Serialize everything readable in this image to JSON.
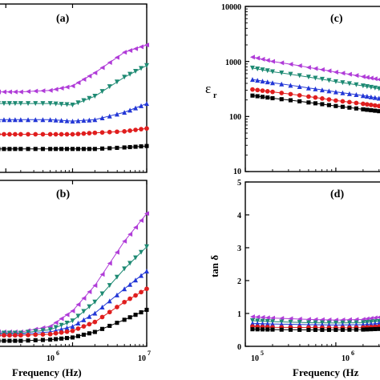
{
  "figure": {
    "panels": {
      "a": {
        "label": "(a)"
      },
      "b": {
        "label": "(b)"
      },
      "c": {
        "label": "(c)"
      },
      "d": {
        "label": "(d)"
      }
    },
    "x_title_left": "Frequency (Hz)",
    "x_title_right": "Frequency (Hz",
    "y_title_c": "ε",
    "y_title_c_sub": "r",
    "y_title_d": "tan δ",
    "x_tick_b": [
      "10",
      "10"
    ],
    "x_tick_b_exp": [
      "6",
      "7"
    ],
    "x_tick_d": [
      "10",
      "10"
    ],
    "x_tick_d_exp": [
      "5",
      "6"
    ],
    "y_ticks_c": [
      "10000",
      "1000",
      "100",
      "10"
    ],
    "y_ticks_d": [
      "5",
      "4",
      "3",
      "2",
      "1",
      "0"
    ]
  },
  "chart_data": [
    {
      "panel": "a",
      "type": "line",
      "xscale": "log",
      "xlim": [
        100000,
        10000000
      ],
      "title": "",
      "xlabel": "",
      "ylabel": "",
      "x": [
        100000,
        200000,
        500000,
        1000000,
        2000000,
        5000000,
        10000000
      ],
      "series": [
        {
          "marker": "triangle-left",
          "color": "#b03cd8",
          "values": [
            0.3,
            0.3,
            0.31,
            0.34,
            0.43,
            0.57,
            0.62
          ]
        },
        {
          "marker": "triangle-down",
          "color": "#1e8a73",
          "values": [
            0.22,
            0.22,
            0.22,
            0.21,
            0.27,
            0.4,
            0.48
          ]
        },
        {
          "marker": "triangle-up",
          "color": "#2337d6",
          "values": [
            0.11,
            0.11,
            0.11,
            0.1,
            0.11,
            0.16,
            0.22
          ]
        },
        {
          "marker": "circle",
          "color": "#e01e1e",
          "values": [
            0.01,
            0.01,
            0.01,
            0.01,
            0.02,
            0.03,
            0.05
          ]
        },
        {
          "marker": "square",
          "color": "#000000",
          "values": [
            -0.09,
            -0.09,
            -0.09,
            -0.09,
            -0.09,
            -0.08,
            -0.07
          ]
        }
      ]
    },
    {
      "panel": "b",
      "type": "line",
      "xscale": "log",
      "xlim": [
        100000,
        10000000
      ],
      "title": "",
      "xlabel": "Frequency (Hz)",
      "ylabel": "",
      "x": [
        100000,
        200000,
        500000,
        1000000,
        2000000,
        5000000,
        10000000
      ],
      "series": [
        {
          "marker": "triangle-left",
          "color": "#b03cd8",
          "values": [
            0.13,
            0.13,
            0.18,
            0.32,
            0.55,
            0.95,
            1.2
          ]
        },
        {
          "marker": "triangle-down",
          "color": "#1e8a73",
          "values": [
            0.12,
            0.12,
            0.15,
            0.23,
            0.4,
            0.7,
            0.9
          ]
        },
        {
          "marker": "triangle-up",
          "color": "#2337d6",
          "values": [
            0.11,
            0.11,
            0.13,
            0.18,
            0.3,
            0.52,
            0.68
          ]
        },
        {
          "marker": "circle",
          "color": "#e01e1e",
          "values": [
            0.1,
            0.1,
            0.11,
            0.14,
            0.22,
            0.4,
            0.52
          ]
        },
        {
          "marker": "square",
          "color": "#000000",
          "values": [
            0.05,
            0.05,
            0.06,
            0.08,
            0.13,
            0.24,
            0.33
          ]
        }
      ]
    },
    {
      "panel": "c",
      "type": "line",
      "xscale": "log",
      "yscale": "log",
      "xlim": [
        100000,
        10000000
      ],
      "ylim": [
        10,
        10000
      ],
      "title": "",
      "xlabel": "",
      "ylabel": "εr",
      "x": [
        120000,
        200000,
        500000,
        1000000,
        2000000,
        3000000
      ],
      "series": [
        {
          "marker": "triangle-left",
          "color": "#b03cd8",
          "values": [
            1200,
            1000,
            780,
            640,
            530,
            470
          ]
        },
        {
          "marker": "triangle-down",
          "color": "#1e8a73",
          "values": [
            760,
            650,
            520,
            430,
            360,
            320
          ]
        },
        {
          "marker": "triangle-up",
          "color": "#2337d6",
          "values": [
            470,
            410,
            330,
            280,
            240,
            215
          ]
        },
        {
          "marker": "circle",
          "color": "#e01e1e",
          "values": [
            310,
            280,
            230,
            195,
            170,
            155
          ]
        },
        {
          "marker": "square",
          "color": "#000000",
          "values": [
            240,
            215,
            180,
            155,
            135,
            125
          ]
        }
      ]
    },
    {
      "panel": "d",
      "type": "line",
      "xscale": "log",
      "xlim": [
        100000,
        10000000
      ],
      "ylim": [
        0,
        5
      ],
      "title": "",
      "xlabel": "Frequency (Hz",
      "ylabel": "tan δ",
      "x": [
        120000,
        200000,
        500000,
        1000000,
        2000000,
        3000000
      ],
      "series": [
        {
          "marker": "triangle-left",
          "color": "#b03cd8",
          "values": [
            0.9,
            0.86,
            0.82,
            0.8,
            0.82,
            0.88
          ]
        },
        {
          "marker": "triangle-down",
          "color": "#1e8a73",
          "values": [
            0.78,
            0.75,
            0.72,
            0.71,
            0.72,
            0.76
          ]
        },
        {
          "marker": "triangle-up",
          "color": "#2337d6",
          "values": [
            0.7,
            0.68,
            0.66,
            0.65,
            0.66,
            0.7
          ]
        },
        {
          "marker": "circle",
          "color": "#e01e1e",
          "values": [
            0.6,
            0.58,
            0.57,
            0.56,
            0.57,
            0.6
          ]
        },
        {
          "marker": "square",
          "color": "#000000",
          "values": [
            0.52,
            0.51,
            0.5,
            0.5,
            0.51,
            0.53
          ]
        }
      ]
    }
  ]
}
